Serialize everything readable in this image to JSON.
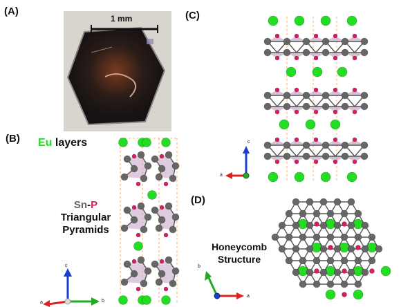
{
  "panels": {
    "a": "(A)",
    "b": "(B)",
    "c": "(C)",
    "d": "(D)"
  },
  "photo": {
    "scale_label": "1 mm"
  },
  "panel_b": {
    "eu_label_element": "Eu",
    "eu_label_rest": " layers",
    "snp_sn": "Sn",
    "snp_dash": "-",
    "snp_p": "P",
    "snp_line2": "Triangular",
    "snp_line3": "Pyramids"
  },
  "panel_d": {
    "line1": "Honeycomb",
    "line2": "Structure"
  },
  "axes": {
    "c": "c",
    "a": "a",
    "b": "b"
  },
  "colors": {
    "eu": "#22dd22",
    "sn": "#666666",
    "p": "#d81b60",
    "pyramid": "#c9a9c9",
    "bond_line": "#f0a050",
    "axis_c": "#1a3fcc",
    "axis_a": "#dd2222",
    "axis_b": "#22aa22"
  }
}
